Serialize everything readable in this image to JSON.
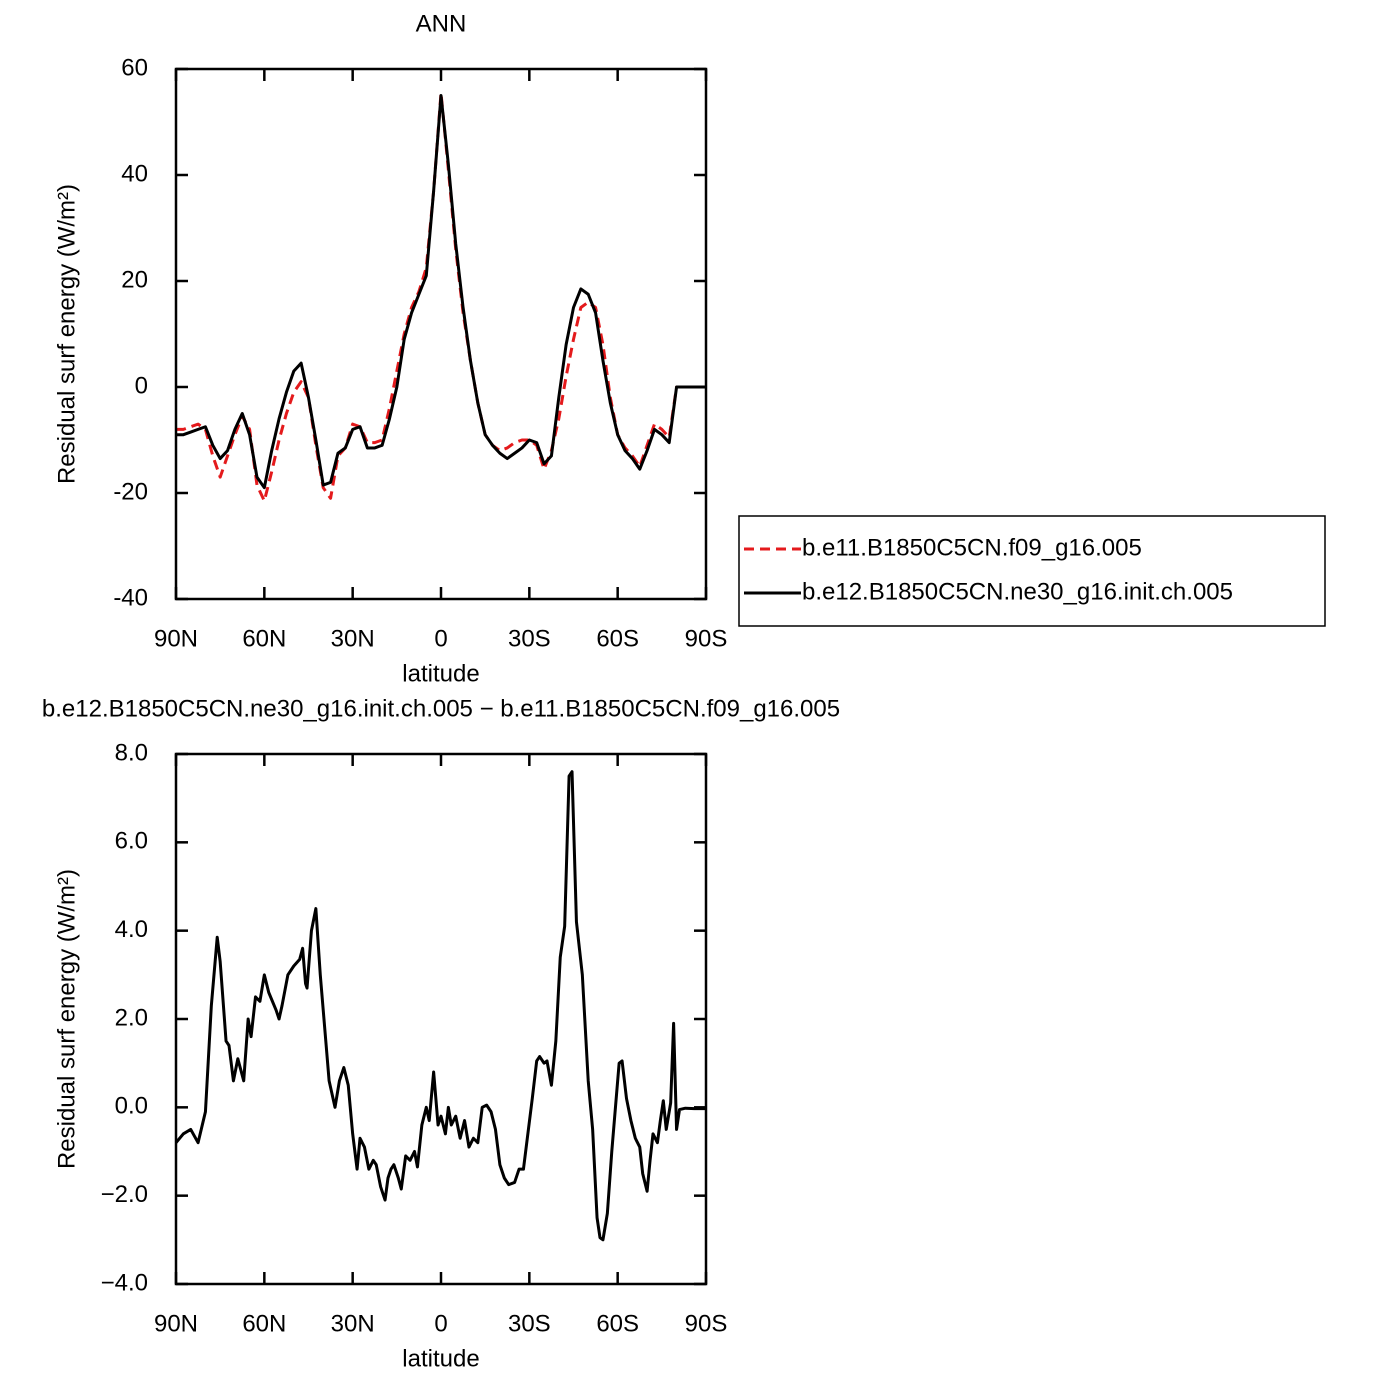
{
  "chart_data": [
    {
      "type": "line",
      "title": "ANN",
      "xlabel": "latitude",
      "ylabel": "Residual surf energy (W/m²)",
      "x": [
        90,
        87.5,
        85,
        82.5,
        80,
        77.5,
        75,
        72.5,
        70,
        67.5,
        65,
        62.5,
        60,
        57.5,
        55,
        52.5,
        50,
        47.5,
        45,
        42.5,
        40,
        37.5,
        35,
        32.5,
        30,
        27.5,
        25,
        22.5,
        20,
        17.5,
        15,
        12.5,
        10,
        7.5,
        5,
        2.5,
        0,
        -2.5,
        -5,
        -7.5,
        -10,
        -12.5,
        -15,
        -17.5,
        -20,
        -22.5,
        -25,
        -27.5,
        -30,
        -32.5,
        -35,
        -37.5,
        -40,
        -42.5,
        -45,
        -47.5,
        -50,
        -52.5,
        -55,
        -57.5,
        -60,
        -62.5,
        -65,
        -67.5,
        -70,
        -72.5,
        -75,
        -77.5,
        -80,
        -82.5,
        -85,
        -87.5,
        -90
      ],
      "series": [
        {
          "name": "b.e11.B1850C5CN.f09_g16.005",
          "color": "#e41a1c",
          "linestyle": "dashed",
          "values": [
            -8,
            -8,
            -7.5,
            -7,
            -8,
            -13,
            -17,
            -13,
            -9,
            -5.5,
            -8,
            -18.5,
            -21.5,
            -16,
            -10,
            -5,
            -1,
            1,
            -2,
            -11,
            -19,
            -21,
            -13,
            -11.5,
            -7,
            -7.5,
            -10.5,
            -10.5,
            -10,
            -4,
            3,
            10,
            15,
            18,
            22.5,
            37,
            55.5,
            41,
            26,
            14,
            5,
            -3,
            -9,
            -11,
            -12,
            -11.5,
            -10.5,
            -10,
            -10,
            -11,
            -15.5,
            -12,
            -6,
            2,
            9,
            15,
            16,
            15,
            8,
            -2,
            -9,
            -11.5,
            -13,
            -15,
            -11,
            -7,
            -8,
            -9.5,
            0,
            0,
            0,
            0,
            0
          ]
        },
        {
          "name": "b.e12.B1850C5CN.ne30_g16.init.ch.005",
          "color": "#000000",
          "linestyle": "solid",
          "values": [
            -9,
            -9,
            -8.5,
            -8,
            -7.5,
            -11,
            -13.5,
            -12,
            -8,
            -5,
            -9,
            -17,
            -19,
            -12,
            -6,
            -1,
            3,
            4.5,
            -2,
            -10,
            -18.5,
            -18,
            -12.5,
            -11.5,
            -8,
            -7.5,
            -11.5,
            -11.5,
            -11,
            -6,
            0,
            9,
            14,
            17.5,
            21,
            37,
            55,
            42,
            27,
            15,
            5,
            -3,
            -9,
            -11,
            -12.5,
            -13.5,
            -12.5,
            -11.5,
            -10,
            -10.5,
            -14.5,
            -13,
            -2,
            8,
            15,
            18.5,
            17.5,
            14,
            5,
            -3,
            -9,
            -12,
            -13.5,
            -15.5,
            -12,
            -8,
            -9,
            -10.5,
            0,
            0,
            0,
            0,
            0
          ]
        }
      ],
      "xlim": [
        90,
        -90
      ],
      "xticks": [
        {
          "value": 90,
          "label": "90N"
        },
        {
          "value": 60,
          "label": "60N"
        },
        {
          "value": 30,
          "label": "30N"
        },
        0,
        {
          "value": -30,
          "label": "30S"
        },
        {
          "value": -60,
          "label": "60S"
        },
        {
          "value": -90,
          "label": "90S"
        }
      ],
      "ylim": [
        -40,
        60
      ],
      "yticks": [
        -40,
        -20,
        0,
        20,
        40,
        60
      ],
      "legend": "right"
    },
    {
      "type": "line",
      "title": "b.e12.B1850C5CN.ne30_g16.init.ch.005 − b.e11.B1850C5CN.f09_g16.005",
      "xlabel": "latitude",
      "ylabel": "Residual surf energy (W/m²)",
      "x": [
        90,
        87.5,
        85,
        82.5,
        80,
        78,
        76,
        75,
        73,
        72,
        70.5,
        69,
        67,
        65.5,
        64.5,
        63,
        61.5,
        60,
        58.5,
        56,
        55,
        54,
        52,
        50,
        48,
        47,
        46,
        45.5,
        44,
        42.5,
        41,
        39,
        38,
        36,
        34.5,
        33,
        31.5,
        30,
        28.5,
        27.5,
        26,
        24.5,
        23,
        22,
        20.5,
        19,
        18,
        17,
        16,
        14.5,
        13.5,
        12,
        10.5,
        9,
        8,
        6.5,
        5,
        4,
        2.5,
        1,
        0,
        -1.5,
        -2.5,
        -3.5,
        -5,
        -6.5,
        -8,
        -9.5,
        -11,
        -12.5,
        -14,
        -15.5,
        -17,
        -18.5,
        -20,
        -21.5,
        -23,
        -25,
        -26.5,
        -28,
        -29.5,
        -31,
        -32.5,
        -33.5,
        -35,
        -36,
        -37.5,
        -39,
        -40.5,
        -42,
        -43.5,
        -44.5,
        -46,
        -48,
        -50,
        -51.5,
        -53,
        -54,
        -55,
        -56.5,
        -58,
        -59.5,
        -60.5,
        -61.5,
        -63,
        -64.5,
        -66,
        -67.5,
        -68.5,
        -70,
        -71,
        -72,
        -73.5,
        -74.5,
        -75.5,
        -76.5,
        -78,
        -79,
        -80,
        -81,
        -83,
        -86,
        -90
      ],
      "series": [
        {
          "color": "#000000",
          "linestyle": "solid",
          "values": [
            -0.8,
            -0.6,
            -0.5,
            -0.8,
            -0.1,
            2.3,
            3.85,
            3.3,
            1.5,
            1.4,
            0.6,
            1.1,
            0.6,
            2.0,
            1.6,
            2.5,
            2.4,
            3.0,
            2.6,
            2.2,
            2.0,
            2.3,
            3.0,
            3.2,
            3.35,
            3.6,
            2.8,
            2.7,
            4.0,
            4.5,
            3.0,
            1.4,
            0.6,
            0.0,
            0.6,
            0.9,
            0.5,
            -0.6,
            -1.4,
            -0.7,
            -0.9,
            -1.4,
            -1.2,
            -1.3,
            -1.8,
            -2.1,
            -1.6,
            -1.4,
            -1.3,
            -1.6,
            -1.85,
            -1.1,
            -1.2,
            -1.0,
            -1.35,
            -0.4,
            0.0,
            -0.3,
            0.8,
            -0.4,
            -0.2,
            -0.6,
            0.0,
            -0.4,
            -0.2,
            -0.7,
            -0.3,
            -0.9,
            -0.7,
            -0.8,
            0.0,
            0.05,
            -0.1,
            -0.5,
            -1.3,
            -1.6,
            -1.75,
            -1.7,
            -1.4,
            -1.4,
            -0.6,
            0.2,
            1.05,
            1.15,
            1.0,
            1.05,
            0.5,
            1.5,
            3.4,
            4.1,
            7.5,
            7.6,
            4.2,
            3.0,
            0.6,
            -0.5,
            -2.5,
            -2.95,
            -3.0,
            -2.4,
            -1.0,
            0.2,
            1.0,
            1.05,
            0.2,
            -0.3,
            -0.7,
            -0.9,
            -1.5,
            -1.9,
            -1.2,
            -0.6,
            -0.8,
            -0.3,
            0.15,
            -0.5,
            0.1,
            1.9,
            -0.5,
            -0.05,
            -0.02,
            -0.03,
            -0.03
          ]
        }
      ],
      "xlim": [
        90,
        -90
      ],
      "xticks": [
        {
          "value": 90,
          "label": "90N"
        },
        {
          "value": 60,
          "label": "60N"
        },
        {
          "value": 30,
          "label": "30N"
        },
        0,
        {
          "value": -30,
          "label": "30S"
        },
        {
          "value": -60,
          "label": "60S"
        },
        {
          "value": -90,
          "label": "90S"
        }
      ],
      "ylim": [
        -4,
        8
      ],
      "yticks": [
        {
          "value": -4,
          "label": "−4.0"
        },
        {
          "value": -2,
          "label": "−2.0"
        },
        {
          "value": 0,
          "label": "0.0"
        },
        {
          "value": 2,
          "label": "2.0"
        },
        {
          "value": 4,
          "label": "4.0"
        },
        {
          "value": 6,
          "label": "6.0"
        },
        {
          "value": 8,
          "label": "8.0"
        }
      ]
    }
  ]
}
